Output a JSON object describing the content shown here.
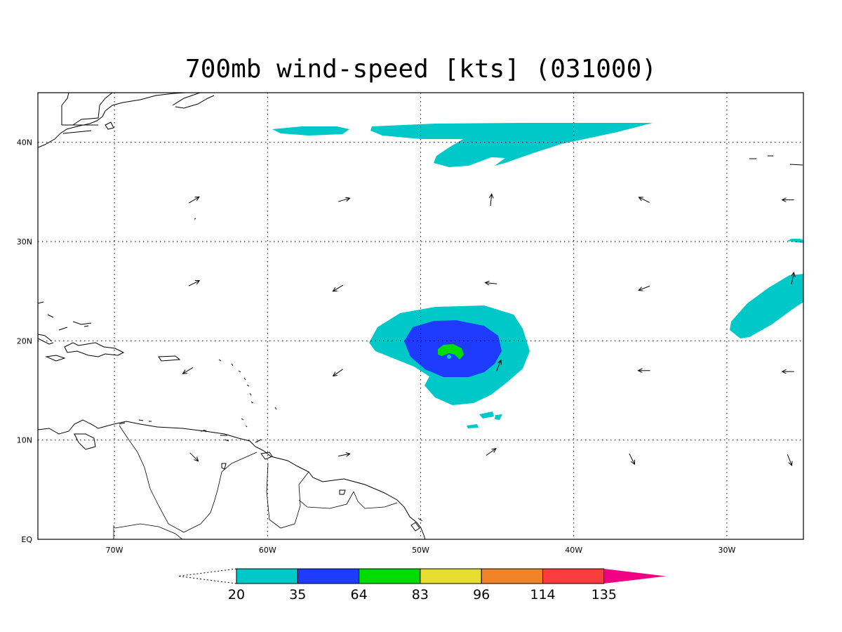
{
  "title": "700mb wind-speed [kts] (031000)",
  "map": {
    "lon_range": [
      -75,
      -25
    ],
    "lat_range": [
      0,
      45
    ],
    "lon_ticks": [
      {
        "value": -70,
        "label": "70W"
      },
      {
        "value": -60,
        "label": "60W"
      },
      {
        "value": -50,
        "label": "50W"
      },
      {
        "value": -40,
        "label": "40W"
      },
      {
        "value": -30,
        "label": "30W"
      }
    ],
    "lat_ticks": [
      {
        "value": 0,
        "label": "EQ"
      },
      {
        "value": 10,
        "label": "10N"
      },
      {
        "value": 20,
        "label": "20N"
      },
      {
        "value": 30,
        "label": "30N"
      },
      {
        "value": 40,
        "label": "40N"
      }
    ],
    "grid": "dotted",
    "storm_center": {
      "lon": -48.2,
      "lat": 18.5
    }
  },
  "colorbar": {
    "levels": [
      "20",
      "35",
      "64",
      "83",
      "96",
      "114",
      "135"
    ],
    "colors": [
      "#00c8c8",
      "#1e3cff",
      "#00dc00",
      "#e6dc32",
      "#f08228",
      "#fa3c3c",
      "#f00082"
    ],
    "low_end": "open",
    "high_end": "#f00082"
  },
  "wind_vectors": [
    {
      "lon": -64.8,
      "lat": 34.2,
      "dx": 1,
      "dy": 0.6
    },
    {
      "lon": -55.0,
      "lat": 34.2,
      "dx": 1,
      "dy": 0.3
    },
    {
      "lon": -45.4,
      "lat": 34.2,
      "dx": 0.1,
      "dy": 1
    },
    {
      "lon": -35.4,
      "lat": 34.2,
      "dx": -1,
      "dy": 0.5
    },
    {
      "lon": -26.0,
      "lat": 34.2,
      "dx": -1,
      "dy": 0
    },
    {
      "lon": -64.8,
      "lat": 25.8,
      "dx": 1,
      "dy": 0.5
    },
    {
      "lon": -55.4,
      "lat": 25.3,
      "dx": -1,
      "dy": -0.6
    },
    {
      "lon": -45.4,
      "lat": 25.8,
      "dx": -1,
      "dy": 0.1
    },
    {
      "lon": -35.4,
      "lat": 25.3,
      "dx": -1,
      "dy": -0.4
    },
    {
      "lon": -25.7,
      "lat": 26.3,
      "dx": 0.2,
      "dy": 1
    },
    {
      "lon": -65.2,
      "lat": 17.0,
      "dx": -1,
      "dy": -0.6
    },
    {
      "lon": -55.4,
      "lat": 16.8,
      "dx": -1,
      "dy": -0.7
    },
    {
      "lon": -44.9,
      "lat": 17.5,
      "dx": 0.4,
      "dy": 1
    },
    {
      "lon": -35.4,
      "lat": 17.0,
      "dx": -1,
      "dy": 0
    },
    {
      "lon": -26.0,
      "lat": 16.9,
      "dx": -1,
      "dy": 0
    },
    {
      "lon": -64.8,
      "lat": 8.3,
      "dx": 0.7,
      "dy": -0.7
    },
    {
      "lon": -55.0,
      "lat": 8.5,
      "dx": 1,
      "dy": 0.2
    },
    {
      "lon": -45.4,
      "lat": 8.8,
      "dx": 1,
      "dy": 0.7
    },
    {
      "lon": -36.2,
      "lat": 8.1,
      "dx": 0.5,
      "dy": -1
    },
    {
      "lon": -25.9,
      "lat": 8.0,
      "dx": 0.4,
      "dy": -1
    }
  ]
}
